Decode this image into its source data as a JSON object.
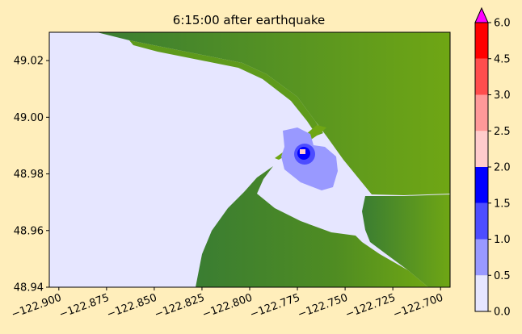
{
  "chart_data": {
    "type": "heatmap",
    "title": "6:15:00 after earthquake",
    "xlabel": "",
    "ylabel": "",
    "xlim": [
      -122.905,
      -122.695
    ],
    "ylim": [
      48.94,
      49.03
    ],
    "x_ticks": [
      -122.9,
      -122.875,
      -122.85,
      -122.825,
      -122.8,
      -122.775,
      -122.75,
      -122.725,
      -122.7
    ],
    "x_tick_labels": [
      "−122.900",
      "−122.875",
      "−122.850",
      "−122.825",
      "−122.800",
      "−122.775",
      "−122.750",
      "−122.725",
      "−122.700"
    ],
    "y_ticks": [
      48.94,
      48.96,
      48.98,
      49.0,
      49.02
    ],
    "y_tick_labels": [
      "48.94",
      "48.96",
      "48.98",
      "49.00",
      "49.02"
    ],
    "colorbar": {
      "levels": [
        0.0,
        0.5,
        1.0,
        1.5,
        2.0,
        2.5,
        3.0,
        4.5,
        6.0
      ],
      "labels": [
        "0.0",
        "0.5",
        "1.0",
        "1.5",
        "2.0",
        "2.5",
        "3.0",
        "4.5",
        "6.0"
      ],
      "colors": [
        "#e6e6ff",
        "#9999ff",
        "#4d4dff",
        "#0000ff",
        "#ffcccc",
        "#ff9999",
        "#ff4d4d",
        "#ff0000"
      ],
      "extend_color": "#ff00ff",
      "extend": "max"
    },
    "colors": {
      "land_dark": "#3a7d32",
      "land_light": "#6fa614",
      "water_calm": "#e6e6ff",
      "background": "#ffeebb"
    }
  }
}
